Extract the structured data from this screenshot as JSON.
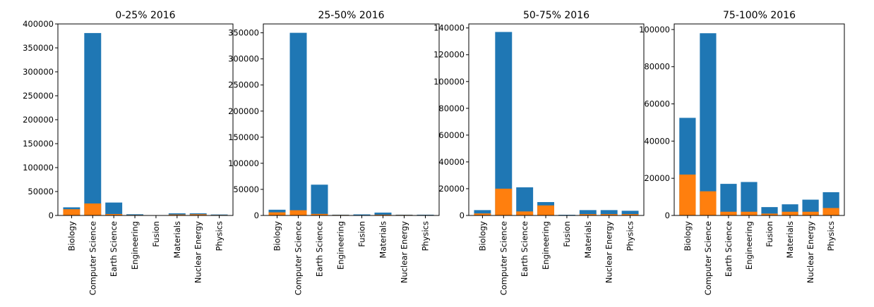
{
  "chart_data": [
    {
      "type": "bar",
      "title": "0-25% 2016",
      "categories": [
        "Biology",
        "Computer Science",
        "Earth Science",
        "Engineering",
        "Fusion",
        "Materials",
        "Nuclear Energy",
        "Physics"
      ],
      "ylim": [
        0,
        400000
      ],
      "yticks": [
        0,
        50000,
        100000,
        150000,
        200000,
        250000,
        300000,
        350000,
        400000
      ],
      "colors": [
        "#1f77b4",
        "#ff7f0e"
      ],
      "series": [
        {
          "values": [
            17000,
            381000,
            27000,
            2500,
            500,
            4500,
            4500,
            2000
          ]
        },
        {
          "values": [
            13000,
            25000,
            3000,
            1000,
            200,
            2000,
            2500,
            1000
          ]
        }
      ]
    },
    {
      "type": "bar",
      "title": "25-50% 2016",
      "categories": [
        "Biology",
        "Computer Science",
        "Earth Science",
        "Engineering",
        "Fusion",
        "Materials",
        "Nuclear Energy",
        "Physics"
      ],
      "ylim": [
        0,
        367000
      ],
      "yticks": [
        0,
        50000,
        100000,
        150000,
        200000,
        250000,
        300000,
        350000
      ],
      "colors": [
        "#1f77b4",
        "#ff7f0e"
      ],
      "series": [
        {
          "values": [
            11000,
            350000,
            59000,
            1500,
            2000,
            5500,
            1500,
            1500
          ]
        },
        {
          "values": [
            6000,
            10000,
            3000,
            1000,
            500,
            1500,
            1000,
            800
          ]
        }
      ]
    },
    {
      "type": "bar",
      "title": "50-75% 2016",
      "categories": [
        "Biology",
        "Computer Science",
        "Earth Science",
        "Engineering",
        "Fusion",
        "Materials",
        "Nuclear Energy",
        "Physics"
      ],
      "ylim": [
        0,
        143000
      ],
      "yticks": [
        0,
        20000,
        40000,
        60000,
        80000,
        100000,
        120000,
        140000
      ],
      "colors": [
        "#1f77b4",
        "#ff7f0e"
      ],
      "series": [
        {
          "values": [
            4000,
            137000,
            21000,
            10000,
            500,
            4000,
            4000,
            3500
          ]
        },
        {
          "values": [
            1500,
            20000,
            3000,
            7500,
            200,
            1000,
            1000,
            1000
          ]
        }
      ]
    },
    {
      "type": "bar",
      "title": "75-100% 2016",
      "categories": [
        "Biology",
        "Computer Science",
        "Earth Science",
        "Engineering",
        "Fusion",
        "Materials",
        "Nuclear Energy",
        "Physics"
      ],
      "ylim": [
        0,
        103000
      ],
      "yticks": [
        0,
        20000,
        40000,
        60000,
        80000,
        100000
      ],
      "colors": [
        "#1f77b4",
        "#ff7f0e"
      ],
      "series": [
        {
          "values": [
            52500,
            98000,
            17000,
            18000,
            4500,
            6000,
            8500,
            12500
          ]
        },
        {
          "values": [
            22000,
            13000,
            2000,
            2000,
            1000,
            2000,
            2000,
            4000
          ]
        }
      ]
    }
  ]
}
